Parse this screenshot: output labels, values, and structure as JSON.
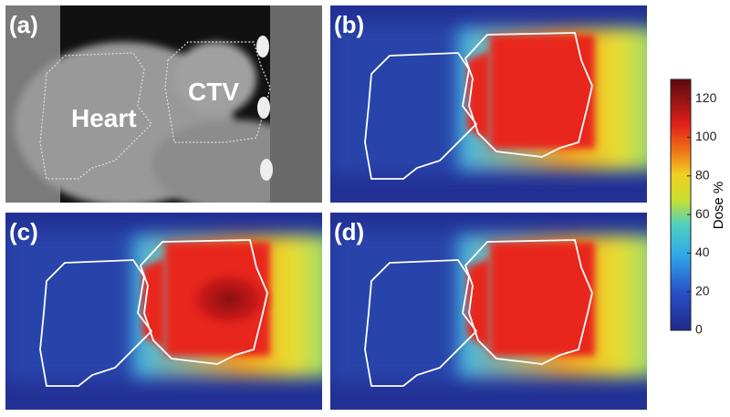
{
  "panels": [
    {
      "label": "(a)",
      "annotations": [
        "Heart",
        "CTV"
      ]
    },
    {
      "label": "(b)"
    },
    {
      "label": "(c)"
    },
    {
      "label": "(d)"
    }
  ],
  "colorbar": {
    "label": "Dose  %",
    "lim": [
      0,
      130
    ],
    "ticks": [
      0,
      20,
      40,
      60,
      80,
      100,
      120
    ]
  }
}
